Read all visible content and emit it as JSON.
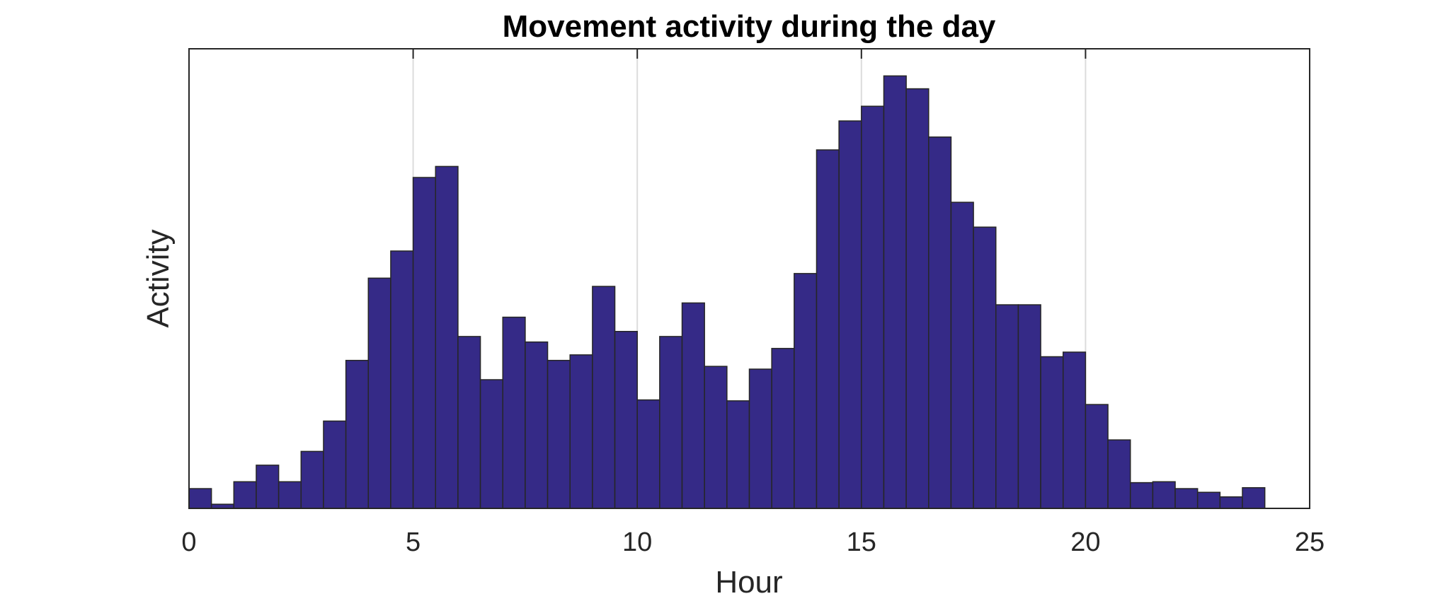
{
  "chart_data": {
    "type": "bar",
    "title": "Movement activity during the day",
    "xlabel": "Hour",
    "ylabel": "Activity",
    "xlim": [
      0,
      25
    ],
    "ylim": [
      0,
      100
    ],
    "xticks": [
      "0",
      "5",
      "10",
      "15",
      "20",
      "25"
    ],
    "grid": "vertical",
    "bin_width": 0.5,
    "bar_color": "#352a87",
    "edge_color": "#262626",
    "x": [
      0,
      0.5,
      1,
      1.5,
      2,
      2.5,
      3,
      3.5,
      4,
      4.5,
      5,
      5.5,
      6,
      6.5,
      7,
      7.5,
      8,
      8.5,
      9,
      9.5,
      10,
      10.5,
      11,
      11.5,
      12,
      12.5,
      13,
      13.5,
      14,
      14.5,
      15,
      15.5,
      16,
      16.5,
      17,
      17.5,
      18,
      18.5,
      19,
      19.5,
      20,
      20.5,
      21,
      21.5,
      22,
      22.5,
      23,
      23.5
    ],
    "values": [
      4.3,
      0.9,
      5.8,
      9.4,
      5.8,
      12.4,
      19.0,
      32.2,
      50.1,
      56.0,
      72.0,
      74.4,
      37.4,
      28.0,
      41.6,
      36.2,
      32.2,
      33.4,
      48.3,
      38.5,
      23.6,
      37.4,
      44.7,
      30.9,
      23.4,
      30.3,
      34.8,
      51.1,
      78.0,
      84.3,
      87.5,
      94.1,
      91.3,
      80.8,
      66.6,
      61.2,
      44.3,
      44.3,
      33.0,
      34.0,
      22.6,
      14.9,
      5.6,
      5.8,
      4.3,
      3.5,
      2.5,
      4.5
    ]
  }
}
